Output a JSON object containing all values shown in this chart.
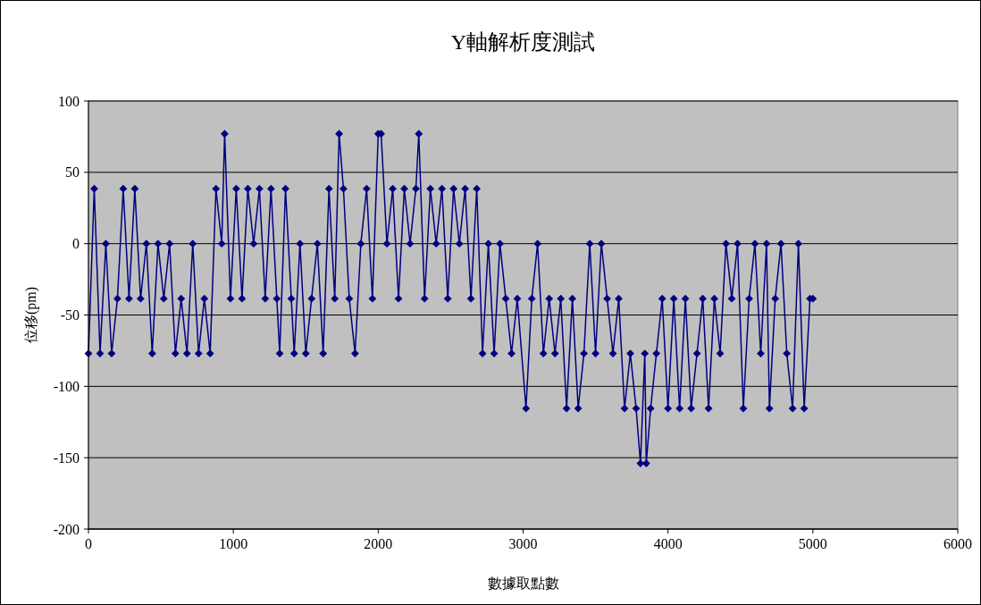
{
  "chart_data": {
    "type": "line",
    "title": "Y軸解析度測試",
    "xlabel": "數據取點數",
    "ylabel": "位移(pm)",
    "xlim": [
      0,
      6000
    ],
    "xticks": [
      0,
      1000,
      2000,
      3000,
      4000,
      5000,
      6000
    ],
    "ylim": [
      -200,
      100
    ],
    "yticks": [
      -200,
      -150,
      -100,
      -50,
      0,
      50,
      100
    ],
    "grid": "y",
    "marker": "diamond",
    "line_style": "solid",
    "series": [
      {
        "color": "#000080",
        "x": [
          0,
          40,
          80,
          120,
          160,
          200,
          240,
          280,
          320,
          360,
          400,
          440,
          480,
          520,
          560,
          600,
          640,
          680,
          720,
          760,
          800,
          840,
          880,
          920,
          940,
          980,
          1020,
          1060,
          1100,
          1140,
          1180,
          1220,
          1260,
          1300,
          1320,
          1360,
          1400,
          1420,
          1460,
          1500,
          1540,
          1580,
          1620,
          1660,
          1700,
          1730,
          1760,
          1800,
          1840,
          1880,
          1920,
          1960,
          2000,
          2020,
          2060,
          2100,
          2140,
          2180,
          2220,
          2260,
          2280,
          2320,
          2360,
          2400,
          2440,
          2480,
          2520,
          2560,
          2600,
          2640,
          2680,
          2720,
          2760,
          2800,
          2840,
          2880,
          2920,
          2960,
          3020,
          3060,
          3100,
          3140,
          3180,
          3220,
          3260,
          3300,
          3340,
          3380,
          3420,
          3460,
          3500,
          3540,
          3580,
          3620,
          3660,
          3700,
          3740,
          3780,
          3810,
          3840,
          3850,
          3880,
          3920,
          3960,
          4000,
          4040,
          4080,
          4120,
          4160,
          4200,
          4240,
          4280,
          4320,
          4360,
          4400,
          4440,
          4480,
          4520,
          4560,
          4600,
          4640,
          4680,
          4700,
          4740,
          4780,
          4820,
          4860,
          4900,
          4940,
          4980,
          5000
        ],
        "values": [
          -77,
          38.5,
          -77,
          0,
          -77,
          -38.5,
          38.5,
          -38.5,
          38.5,
          -38.5,
          0,
          -77,
          0,
          -38.5,
          0,
          -77,
          -38.5,
          -77,
          0,
          -77,
          -38.5,
          -77,
          38.5,
          0,
          77,
          -38.5,
          38.5,
          -38.5,
          38.5,
          0,
          38.5,
          -38.5,
          38.5,
          -38.5,
          -77,
          38.5,
          -38.5,
          -77,
          0,
          -77,
          -38.5,
          0,
          -77,
          38.5,
          -38.5,
          77,
          38.5,
          -38.5,
          -77,
          0,
          38.5,
          -38.5,
          77,
          77,
          0,
          38.5,
          -38.5,
          38.5,
          0,
          38.5,
          77,
          -38.5,
          38.5,
          0,
          38.5,
          -38.5,
          38.5,
          0,
          38.5,
          -38.5,
          38.5,
          -77,
          0,
          -77,
          0,
          -38.5,
          -77,
          -38.5,
          -115.5,
          -38.5,
          0,
          -77,
          -38.5,
          -77,
          -38.5,
          -115.5,
          -38.5,
          -115.5,
          -77,
          0,
          -77,
          0,
          -38.5,
          -77,
          -38.5,
          -115.5,
          -77,
          -115.5,
          -154,
          -77,
          -154,
          -115.5,
          -77,
          -38.5,
          -115.5,
          -38.5,
          -115.5,
          -38.5,
          -115.5,
          -77,
          -38.5,
          -115.5,
          -38.5,
          -77,
          0,
          -38.5,
          0,
          -115.5,
          -38.5,
          0,
          -77,
          0,
          -115.5,
          -38.5,
          0,
          -77,
          -115.5,
          0,
          -115.5,
          -38.5,
          -38.5
        ]
      }
    ]
  }
}
